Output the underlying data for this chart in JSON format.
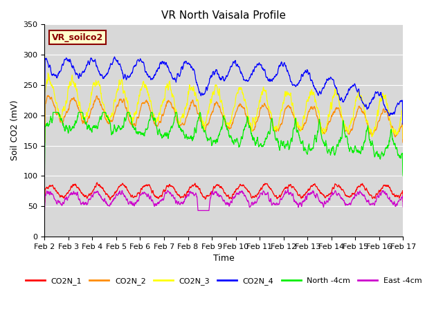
{
  "title": "VR North Vaisala Profile",
  "xlabel": "Time",
  "ylabel": "Soil CO2 (mV)",
  "xlim": [
    0,
    15
  ],
  "ylim": [
    0,
    350
  ],
  "yticks": [
    0,
    50,
    100,
    150,
    200,
    250,
    300,
    350
  ],
  "xtick_labels": [
    "Feb 2",
    "Feb 3",
    "Feb 4",
    "Feb 5",
    "Feb 6",
    "Feb 7",
    "Feb 8",
    "Feb 9",
    "Feb 10",
    "Feb 11",
    "Feb 12",
    "Feb 13",
    "Feb 14",
    "Feb 15",
    "Feb 16",
    "Feb 17"
  ],
  "series_colors": [
    "#ff0000",
    "#ff8c00",
    "#ffff00",
    "#0000ff",
    "#00ee00",
    "#cc00cc"
  ],
  "series_names": [
    "CO2N_1",
    "CO2N_2",
    "CO2N_3",
    "CO2N_4",
    "North -4cm",
    "East -4cm"
  ],
  "annotation_text": "VR_soilco2",
  "annotation_color": "#8b0000",
  "annotation_bg": "#ffffcc",
  "fig_bg": "#ffffff",
  "plot_bg": "#d8d8d8",
  "title_fontsize": 11,
  "label_fontsize": 9,
  "tick_fontsize": 8
}
